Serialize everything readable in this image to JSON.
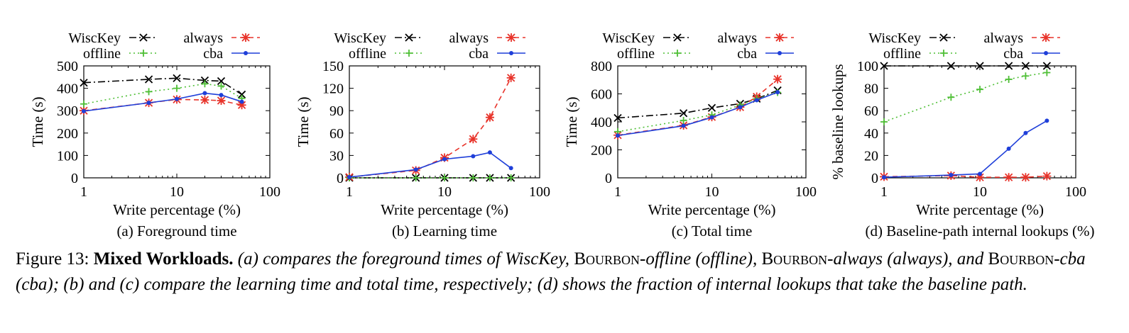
{
  "chart_data": [
    {
      "type": "line",
      "subtitle": "(a) Foreground time",
      "xlabel": "Write percentage (%)",
      "ylabel": "Time (s)",
      "xscale": "log",
      "xlim": [
        1,
        100
      ],
      "ylim": [
        0,
        500
      ],
      "xticks": [
        "1",
        "10",
        "100"
      ],
      "yticks": [
        "0",
        "100",
        "200",
        "300",
        "400",
        "500"
      ],
      "legend": "top",
      "x": [
        1,
        5,
        10,
        20,
        30,
        50
      ],
      "series": [
        {
          "name": "WiscKey",
          "color": "#000000",
          "dash": "dashdot",
          "marker": "x",
          "values": [
            425,
            440,
            445,
            435,
            432,
            372
          ]
        },
        {
          "name": "always",
          "color": "#e8332a",
          "dash": "dash",
          "marker": "asterisk",
          "values": [
            300,
            335,
            350,
            348,
            345,
            325
          ]
        },
        {
          "name": "offline",
          "color": "#4fbf36",
          "dash": "dot",
          "marker": "plus",
          "values": [
            330,
            385,
            400,
            420,
            410,
            355
          ]
        },
        {
          "name": "cba",
          "color": "#1f3fd9",
          "dash": "solid",
          "marker": "dot",
          "values": [
            298,
            335,
            352,
            378,
            370,
            340
          ]
        }
      ]
    },
    {
      "type": "line",
      "subtitle": "(b) Learning time",
      "xlabel": "Write percentage (%)",
      "ylabel": "Time (s)",
      "xscale": "log",
      "xlim": [
        1,
        100
      ],
      "ylim": [
        0,
        150
      ],
      "xticks": [
        "1",
        "10",
        "100"
      ],
      "yticks": [
        "0",
        "30",
        "60",
        "90",
        "120",
        "150"
      ],
      "legend": "top",
      "x": [
        1,
        5,
        10,
        20,
        30,
        50
      ],
      "series": [
        {
          "name": "WiscKey",
          "color": "#000000",
          "dash": "dashdot",
          "marker": "x",
          "values": [
            0,
            0,
            0,
            0,
            0,
            0
          ]
        },
        {
          "name": "always",
          "color": "#e8332a",
          "dash": "dash",
          "marker": "asterisk",
          "values": [
            1,
            10,
            27,
            52,
            81,
            134
          ]
        },
        {
          "name": "offline",
          "color": "#4fbf36",
          "dash": "dot",
          "marker": "plus",
          "values": [
            0,
            0,
            0,
            0,
            0,
            0
          ]
        },
        {
          "name": "cba",
          "color": "#1f3fd9",
          "dash": "solid",
          "marker": "dot",
          "values": [
            1,
            11,
            25,
            29,
            34,
            13
          ]
        }
      ]
    },
    {
      "type": "line",
      "subtitle": "(c) Total time",
      "xlabel": "Write percentage (%)",
      "ylabel": "Time (s)",
      "xscale": "log",
      "xlim": [
        1,
        100
      ],
      "ylim": [
        0,
        800
      ],
      "xticks": [
        "1",
        "10",
        "100"
      ],
      "yticks": [
        "0",
        "200",
        "400",
        "600",
        "800"
      ],
      "legend": "top",
      "x": [
        1,
        5,
        10,
        20,
        30,
        50
      ],
      "series": [
        {
          "name": "WiscKey",
          "color": "#000000",
          "dash": "dashdot",
          "marker": "x",
          "values": [
            428,
            462,
            500,
            530,
            565,
            625
          ]
        },
        {
          "name": "always",
          "color": "#e8332a",
          "dash": "dash",
          "marker": "asterisk",
          "values": [
            305,
            375,
            435,
            505,
            580,
            705
          ]
        },
        {
          "name": "offline",
          "color": "#4fbf36",
          "dash": "dot",
          "marker": "plus",
          "values": [
            330,
            410,
            450,
            520,
            565,
            610
          ]
        },
        {
          "name": "cba",
          "color": "#1f3fd9",
          "dash": "solid",
          "marker": "dot",
          "values": [
            302,
            372,
            432,
            505,
            555,
            612
          ]
        }
      ]
    },
    {
      "type": "line",
      "subtitle": "(d) Baseline-path internal lookups (%)",
      "xlabel": "Write percentage (%)",
      "ylabel": "% baseline lookups",
      "xscale": "log",
      "xlim": [
        1,
        100
      ],
      "ylim": [
        0,
        100
      ],
      "xticks": [
        "1",
        "10",
        "100"
      ],
      "yticks": [
        "0",
        "20",
        "40",
        "60",
        "80",
        "100"
      ],
      "legend": "top",
      "x": [
        1,
        5,
        10,
        20,
        30,
        50
      ],
      "series": [
        {
          "name": "WiscKey",
          "color": "#000000",
          "dash": "dashdot",
          "marker": "x",
          "values": [
            100,
            100,
            100,
            100,
            100,
            100
          ]
        },
        {
          "name": "always",
          "color": "#e8332a",
          "dash": "dash",
          "marker": "asterisk",
          "values": [
            1,
            2,
            0.5,
            0.5,
            0.5,
            1.5
          ]
        },
        {
          "name": "offline",
          "color": "#4fbf36",
          "dash": "dot",
          "marker": "plus",
          "values": [
            50,
            72,
            79,
            88,
            91,
            94
          ]
        },
        {
          "name": "cba",
          "color": "#1f3fd9",
          "dash": "solid",
          "marker": "dot",
          "values": [
            0.5,
            2.5,
            3.5,
            26,
            40,
            51
          ]
        }
      ]
    }
  ],
  "caption": {
    "lead": "Figure 13:",
    "title": "Mixed Workloads.",
    "parts": [
      {
        "text": "(a) compares the foreground times of WiscKey, ",
        "sc": false
      },
      {
        "text": "Bourbon",
        "sc": true
      },
      {
        "text": "-offline (offline), ",
        "sc": false
      },
      {
        "text": "Bourbon",
        "sc": true
      },
      {
        "text": "-always (always), and ",
        "sc": false
      },
      {
        "text": "Bourbon",
        "sc": true
      },
      {
        "text": "-cba (cba); (b) and (c) compare the learning time and total time, respectively; (d) shows the fraction of internal lookups that take the baseline path.",
        "sc": false
      }
    ]
  }
}
